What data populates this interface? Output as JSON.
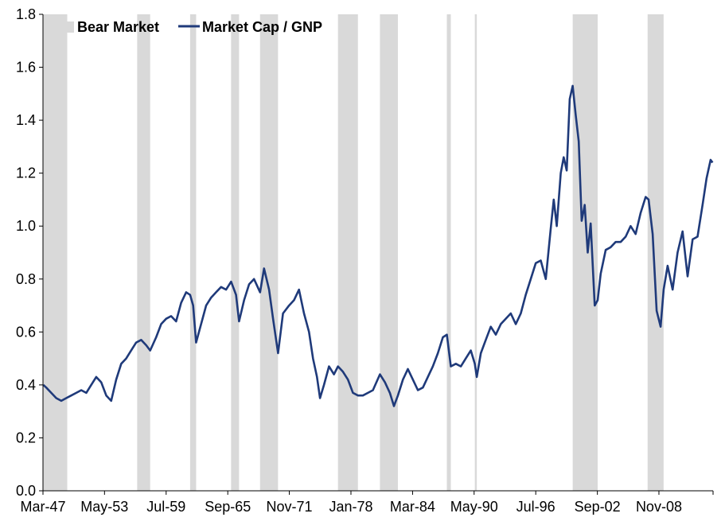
{
  "chart_data": {
    "type": "line",
    "title": "",
    "xlabel": "",
    "ylabel": "",
    "ylim": [
      0.0,
      1.8
    ],
    "yticks": [
      "0.0",
      "0.2",
      "0.4",
      "0.6",
      "0.8",
      "1.0",
      "1.2",
      "1.4",
      "1.6",
      "1.8"
    ],
    "xlim": [
      1947.17,
      2014.25
    ],
    "xticks": [
      {
        "label": "Mar-47",
        "year": 1947.17
      },
      {
        "label": "May-53",
        "year": 1953.33
      },
      {
        "label": "Jul-59",
        "year": 1959.5
      },
      {
        "label": "Sep-65",
        "year": 1965.67
      },
      {
        "label": "Nov-71",
        "year": 1971.83
      },
      {
        "label": "Jan-78",
        "year": 1978.0
      },
      {
        "label": "Mar-84",
        "year": 1984.17
      },
      {
        "label": "May-90",
        "year": 1990.33
      },
      {
        "label": "Jul-96",
        "year": 1996.5
      },
      {
        "label": "Sep-02",
        "year": 2002.67
      },
      {
        "label": "Nov-08",
        "year": 2008.83
      }
    ],
    "grid": false,
    "legend_position": "top-left",
    "legend": [
      {
        "label": "Bear Market",
        "kind": "band",
        "color": "#d9d9d9"
      },
      {
        "label": "Market Cap / GNP",
        "kind": "line",
        "color": "#1f3a7a"
      }
    ],
    "bear_markets": [
      {
        "start": 1947.2,
        "end": 1949.6
      },
      {
        "start": 1956.6,
        "end": 1957.9
      },
      {
        "start": 1961.9,
        "end": 1962.5
      },
      {
        "start": 1966.0,
        "end": 1966.8
      },
      {
        "start": 1968.9,
        "end": 1970.7
      },
      {
        "start": 1976.7,
        "end": 1978.7
      },
      {
        "start": 1980.9,
        "end": 1982.7
      },
      {
        "start": 1987.6,
        "end": 1988.0
      },
      {
        "start": 1990.4,
        "end": 1990.6
      },
      {
        "start": 2000.2,
        "end": 2002.7
      },
      {
        "start": 2007.7,
        "end": 2009.3
      }
    ],
    "series": [
      {
        "name": "Market Cap / GNP",
        "color": "#1f3a7a",
        "x": [
          1947.2,
          1947.5,
          1948.0,
          1948.5,
          1949.0,
          1949.5,
          1950.0,
          1950.5,
          1951.0,
          1951.5,
          1952.0,
          1952.5,
          1953.0,
          1953.5,
          1954.0,
          1954.5,
          1955.0,
          1955.5,
          1956.0,
          1956.5,
          1957.0,
          1957.5,
          1957.9,
          1958.5,
          1959.0,
          1959.5,
          1960.0,
          1960.5,
          1961.0,
          1961.5,
          1961.9,
          1962.2,
          1962.5,
          1963.0,
          1963.5,
          1964.0,
          1964.5,
          1965.0,
          1965.5,
          1966.0,
          1966.5,
          1966.8,
          1967.3,
          1967.8,
          1968.3,
          1968.9,
          1969.3,
          1969.8,
          1970.2,
          1970.7,
          1971.2,
          1971.8,
          1972.3,
          1972.8,
          1973.3,
          1973.8,
          1974.2,
          1974.6,
          1974.9,
          1975.3,
          1975.8,
          1976.3,
          1976.7,
          1977.2,
          1977.7,
          1978.2,
          1978.7,
          1979.2,
          1979.7,
          1980.2,
          1980.9,
          1981.4,
          1981.9,
          1982.3,
          1982.7,
          1983.2,
          1983.7,
          1984.2,
          1984.7,
          1985.2,
          1985.7,
          1986.2,
          1986.7,
          1987.2,
          1987.6,
          1988.0,
          1988.5,
          1989.0,
          1989.5,
          1990.0,
          1990.4,
          1990.6,
          1991.0,
          1991.5,
          1992.0,
          1992.5,
          1993.0,
          1993.5,
          1994.0,
          1994.5,
          1995.0,
          1995.5,
          1996.0,
          1996.5,
          1997.0,
          1997.5,
          1998.0,
          1998.3,
          1998.6,
          1999.0,
          1999.3,
          1999.6,
          1999.9,
          2000.2,
          2000.5,
          2000.8,
          2001.1,
          2001.4,
          2001.7,
          2002.0,
          2002.4,
          2002.7,
          2003.0,
          2003.5,
          2004.0,
          2004.5,
          2005.0,
          2005.5,
          2006.0,
          2006.5,
          2007.0,
          2007.5,
          2007.8,
          2008.2,
          2008.6,
          2009.0,
          2009.3,
          2009.7,
          2010.2,
          2010.7,
          2011.2,
          2011.7,
          2012.2,
          2012.7,
          2013.2,
          2013.6,
          2014.0,
          2014.2
        ],
        "y": [
          0.4,
          0.39,
          0.37,
          0.35,
          0.34,
          0.35,
          0.36,
          0.37,
          0.38,
          0.37,
          0.4,
          0.43,
          0.41,
          0.36,
          0.34,
          0.42,
          0.48,
          0.5,
          0.53,
          0.56,
          0.57,
          0.55,
          0.53,
          0.58,
          0.63,
          0.65,
          0.66,
          0.64,
          0.71,
          0.75,
          0.74,
          0.7,
          0.56,
          0.63,
          0.7,
          0.73,
          0.75,
          0.77,
          0.76,
          0.79,
          0.74,
          0.64,
          0.72,
          0.78,
          0.8,
          0.75,
          0.84,
          0.76,
          0.65,
          0.52,
          0.67,
          0.7,
          0.72,
          0.76,
          0.67,
          0.6,
          0.5,
          0.43,
          0.35,
          0.4,
          0.47,
          0.44,
          0.47,
          0.45,
          0.42,
          0.37,
          0.36,
          0.36,
          0.37,
          0.38,
          0.44,
          0.41,
          0.37,
          0.32,
          0.36,
          0.42,
          0.46,
          0.42,
          0.38,
          0.39,
          0.43,
          0.47,
          0.52,
          0.58,
          0.59,
          0.47,
          0.48,
          0.47,
          0.5,
          0.53,
          0.48,
          0.43,
          0.52,
          0.57,
          0.62,
          0.59,
          0.63,
          0.65,
          0.67,
          0.63,
          0.67,
          0.74,
          0.8,
          0.86,
          0.87,
          0.8,
          0.99,
          1.1,
          1.0,
          1.2,
          1.26,
          1.21,
          1.48,
          1.53,
          1.42,
          1.32,
          1.02,
          1.08,
          0.9,
          1.01,
          0.7,
          0.72,
          0.82,
          0.91,
          0.92,
          0.94,
          0.94,
          0.96,
          1.0,
          0.97,
          1.05,
          1.11,
          1.1,
          0.97,
          0.68,
          0.62,
          0.76,
          0.85,
          0.76,
          0.9,
          0.98,
          0.81,
          0.95,
          0.96,
          1.08,
          1.18,
          1.25,
          1.24
        ]
      }
    ]
  }
}
